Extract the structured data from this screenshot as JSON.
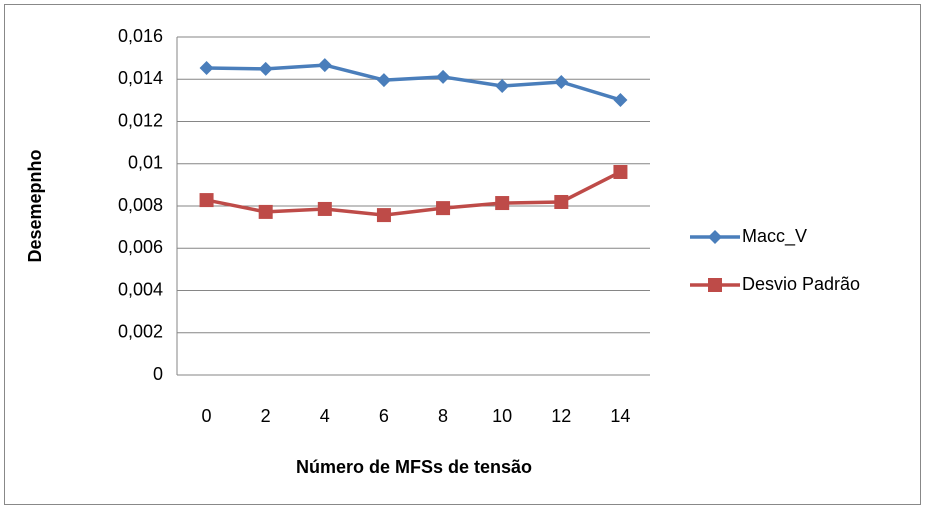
{
  "chart_data": {
    "type": "line",
    "y_label": "Desemepnho",
    "x_label": "Número de MFSs de tensão",
    "categories": [
      "0",
      "2",
      "4",
      "6",
      "8",
      "10",
      "12",
      "14"
    ],
    "series": [
      {
        "name": "Macc_V",
        "color": "#4a7ebb",
        "marker": "diamond",
        "values": [
          0.01453,
          0.01449,
          0.01467,
          0.01396,
          0.01411,
          0.01368,
          0.01387,
          0.01302
        ]
      },
      {
        "name": "Desvio Padrão",
        "color": "#be4b48",
        "marker": "square",
        "values": [
          0.00828,
          0.00772,
          0.00786,
          0.00757,
          0.0079,
          0.00814,
          0.00819,
          0.00961
        ]
      }
    ],
    "ylim": [
      0,
      0.016
    ],
    "yticks": [
      0,
      {
        "value": 0.002,
        "label": "0,002"
      },
      {
        "value": 0.004,
        "label": "0,004"
      },
      {
        "value": 0.006,
        "label": "0,006"
      },
      {
        "value": 0.008,
        "label": "0,008"
      },
      {
        "value": 0.01,
        "label": "0,01"
      },
      {
        "value": 0.012,
        "label": "0,012"
      },
      {
        "value": 0.014,
        "label": "0,014"
      },
      {
        "value": 0.016,
        "label": "0,016"
      }
    ],
    "grid": true,
    "legend": "right"
  }
}
